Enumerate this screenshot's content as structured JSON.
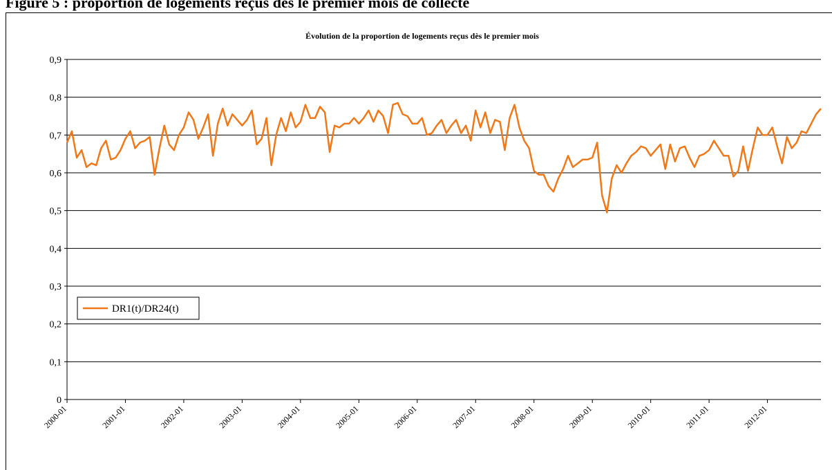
{
  "caption": "Figure 5 : proportion de logements reçus dès le premier mois de collecte",
  "chart_data": {
    "type": "line",
    "title": "Évolution de la proportion de logements reçus dès le premier mois",
    "categories": [
      "2000-01",
      null,
      null,
      null,
      null,
      null,
      null,
      null,
      null,
      null,
      null,
      null,
      "2001-01",
      null,
      null,
      null,
      null,
      null,
      null,
      null,
      null,
      null,
      null,
      null,
      "2002-01",
      null,
      null,
      null,
      null,
      null,
      null,
      null,
      null,
      null,
      null,
      null,
      "2003-01",
      null,
      null,
      null,
      null,
      null,
      null,
      null,
      null,
      null,
      null,
      null,
      "2004-01",
      null,
      null,
      null,
      null,
      null,
      null,
      null,
      null,
      null,
      null,
      null,
      "2005-01",
      null,
      null,
      null,
      null,
      null,
      null,
      null,
      null,
      null,
      null,
      null,
      "2006-01",
      null,
      null,
      null,
      null,
      null,
      null,
      null,
      null,
      null,
      null,
      null,
      "2007-01",
      null,
      null,
      null,
      null,
      null,
      null,
      null,
      null,
      null,
      null,
      null,
      "2008-01",
      null,
      null,
      null,
      null,
      null,
      null,
      null,
      null,
      null,
      null,
      null,
      "2009-01",
      null,
      null,
      null,
      null,
      null,
      null,
      null,
      null,
      null,
      null,
      null,
      "2010-01",
      null,
      null,
      null,
      null,
      null,
      null,
      null,
      null,
      null,
      null,
      null,
      "2011-01",
      null,
      null,
      null,
      null,
      null,
      null,
      null,
      null,
      null,
      null,
      null,
      "2012-01",
      null,
      null,
      null,
      null,
      null,
      null,
      null,
      null,
      null,
      null,
      null
    ],
    "series": [
      {
        "name": "DR1(t)/DR24(t)",
        "color": "#f07818",
        "values": [
          0.68,
          0.71,
          0.64,
          0.66,
          0.615,
          0.625,
          0.62,
          0.665,
          0.685,
          0.635,
          0.64,
          0.66,
          0.69,
          0.71,
          0.665,
          0.68,
          0.685,
          0.695,
          0.595,
          0.665,
          0.725,
          0.675,
          0.66,
          0.7,
          0.72,
          0.76,
          0.74,
          0.69,
          0.72,
          0.755,
          0.645,
          0.73,
          0.77,
          0.725,
          0.755,
          0.74,
          0.725,
          0.74,
          0.765,
          0.675,
          0.69,
          0.745,
          0.62,
          0.7,
          0.745,
          0.71,
          0.76,
          0.72,
          0.735,
          0.78,
          0.745,
          0.745,
          0.775,
          0.76,
          0.655,
          0.725,
          0.72,
          0.73,
          0.73,
          0.745,
          0.73,
          0.745,
          0.765,
          0.735,
          0.765,
          0.75,
          0.705,
          0.78,
          0.785,
          0.755,
          0.75,
          0.73,
          0.73,
          0.745,
          0.7,
          0.705,
          0.725,
          0.74,
          0.705,
          0.725,
          0.74,
          0.705,
          0.725,
          0.685,
          0.765,
          0.72,
          0.76,
          0.705,
          0.74,
          0.735,
          0.66,
          0.745,
          0.78,
          0.72,
          0.685,
          0.665,
          0.605,
          0.595,
          0.595,
          0.565,
          0.55,
          0.585,
          0.61,
          0.645,
          0.615,
          0.625,
          0.635,
          0.635,
          0.64,
          0.68,
          0.54,
          0.495,
          0.585,
          0.62,
          0.6,
          0.625,
          0.645,
          0.655,
          0.67,
          0.665,
          0.645,
          0.66,
          0.675,
          0.61,
          0.675,
          0.63,
          0.665,
          0.67,
          0.64,
          0.615,
          0.645,
          0.65,
          0.66,
          0.685,
          0.665,
          0.645,
          0.645,
          0.59,
          0.605,
          0.67,
          0.605,
          0.665,
          0.72,
          0.7,
          0.7,
          0.72,
          0.67,
          0.625,
          0.695,
          0.665,
          0.68,
          0.71,
          0.705,
          0.73,
          0.755,
          0.77
        ]
      }
    ],
    "ylim": [
      0,
      0.9
    ],
    "yticks": [
      0,
      {
        "value": 0.1,
        "label": "0,1"
      },
      {
        "value": 0.2,
        "label": "0,2"
      },
      {
        "value": 0.3,
        "label": "0,3"
      },
      {
        "value": 0.4,
        "label": "0,4"
      },
      {
        "value": 0.5,
        "label": "0,5"
      },
      {
        "value": 0.6,
        "label": "0,6"
      },
      {
        "value": 0.7,
        "label": "0,7"
      },
      {
        "value": 0.8,
        "label": "0,8"
      },
      {
        "value": 0.9,
        "label": "0,9"
      }
    ],
    "grid": true,
    "legend": "left"
  }
}
